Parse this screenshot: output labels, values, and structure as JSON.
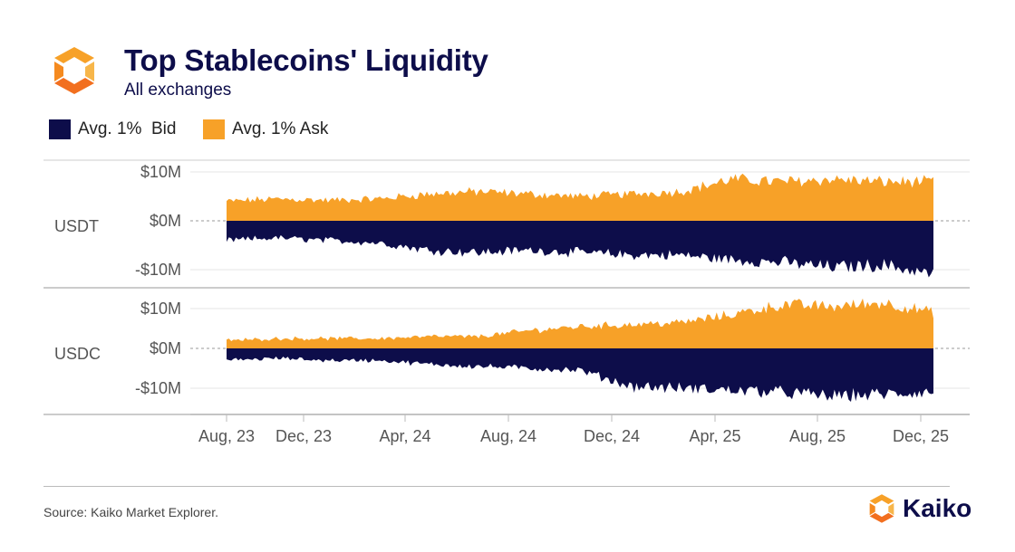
{
  "header": {
    "title": "Top Stablecoins' Liquidity",
    "subtitle": "All exchanges"
  },
  "legend": [
    {
      "label": "Avg. 1%  Bid",
      "color": "#0d0d4a"
    },
    {
      "label": "Avg. 1% Ask",
      "color": "#f7a128"
    }
  ],
  "footer": {
    "source": "Source: Kaiko Market Explorer.",
    "brand": "Kaiko"
  },
  "colors": {
    "bid": "#0d0d4a",
    "ask": "#f7a128",
    "brand_orange": "#f7a128"
  },
  "chart_data": {
    "type": "area",
    "title": "Top Stablecoins' Liquidity",
    "subtitle": "All exchanges",
    "x_range": [
      "Aug, 23",
      "Dec, 25"
    ],
    "x_ticks": [
      "Aug, 23",
      "Dec, 23",
      "Apr, 24",
      "Aug, 24",
      "Dec, 24",
      "Apr, 25",
      "Aug, 25",
      "Dec, 25"
    ],
    "unit": "USD millions",
    "panels": [
      {
        "name": "USDT",
        "y_ticks": [
          "$10M",
          "$0M",
          "-$10M"
        ],
        "ylim": [
          -12,
          12
        ],
        "series": [
          {
            "name": "Avg. 1% Ask",
            "x": [
              "Aug, 23",
              "Oct, 23",
              "Dec, 23",
              "Feb, 24",
              "Apr, 24",
              "Jun, 24",
              "Aug, 24",
              "Oct, 24",
              "Dec, 24",
              "Feb, 25",
              "Apr, 25",
              "Jun, 25",
              "Aug, 25",
              "Oct, 25",
              "Dec, 25"
            ],
            "values": [
              4.0,
              4.5,
              4.2,
              4.5,
              5.5,
              6.0,
              5.5,
              5.0,
              5.5,
              6.0,
              8.5,
              8.0,
              8.5,
              8.0,
              8.0
            ]
          },
          {
            "name": "Avg. 1% Bid",
            "x": [
              "Aug, 23",
              "Oct, 23",
              "Dec, 23",
              "Feb, 24",
              "Apr, 24",
              "Jun, 24",
              "Aug, 24",
              "Oct, 24",
              "Dec, 24",
              "Feb, 25",
              "Apr, 25",
              "Jun, 25",
              "Aug, 25",
              "Oct, 25",
              "Dec, 25"
            ],
            "values": [
              -4.0,
              -3.5,
              -4.0,
              -4.5,
              -6.0,
              -6.5,
              -6.0,
              -6.5,
              -7.0,
              -7.0,
              -8.0,
              -8.5,
              -9.5,
              -9.0,
              -11.0
            ]
          }
        ]
      },
      {
        "name": "USDC",
        "y_ticks": [
          "$10M",
          "$0M",
          "-$10M"
        ],
        "ylim": [
          -14,
          14
        ],
        "series": [
          {
            "name": "Avg. 1% Ask",
            "x": [
              "Aug, 23",
              "Oct, 23",
              "Dec, 23",
              "Feb, 24",
              "Apr, 24",
              "Jun, 24",
              "Aug, 24",
              "Oct, 24",
              "Dec, 24",
              "Feb, 25",
              "Apr, 25",
              "Jun, 25",
              "Aug, 25",
              "Oct, 25",
              "Dec, 25"
            ],
            "values": [
              2.0,
              2.5,
              2.5,
              2.5,
              3.0,
              3.0,
              4.5,
              5.5,
              6.0,
              6.5,
              8.5,
              11.0,
              10.5,
              11.5,
              9.0
            ]
          },
          {
            "name": "Avg. 1% Bid",
            "x": [
              "Aug, 23",
              "Oct, 23",
              "Dec, 23",
              "Feb, 24",
              "Apr, 24",
              "Jun, 24",
              "Aug, 24",
              "Oct, 24",
              "Dec, 24",
              "Feb, 25",
              "Apr, 25",
              "Jun, 25",
              "Aug, 25",
              "Oct, 25",
              "Dec, 25"
            ],
            "values": [
              -3.0,
              -2.5,
              -3.0,
              -3.0,
              -4.0,
              -4.5,
              -5.0,
              -5.5,
              -9.5,
              -10.0,
              -10.5,
              -11.0,
              -12.0,
              -11.5,
              -11.0
            ]
          }
        ]
      }
    ]
  }
}
